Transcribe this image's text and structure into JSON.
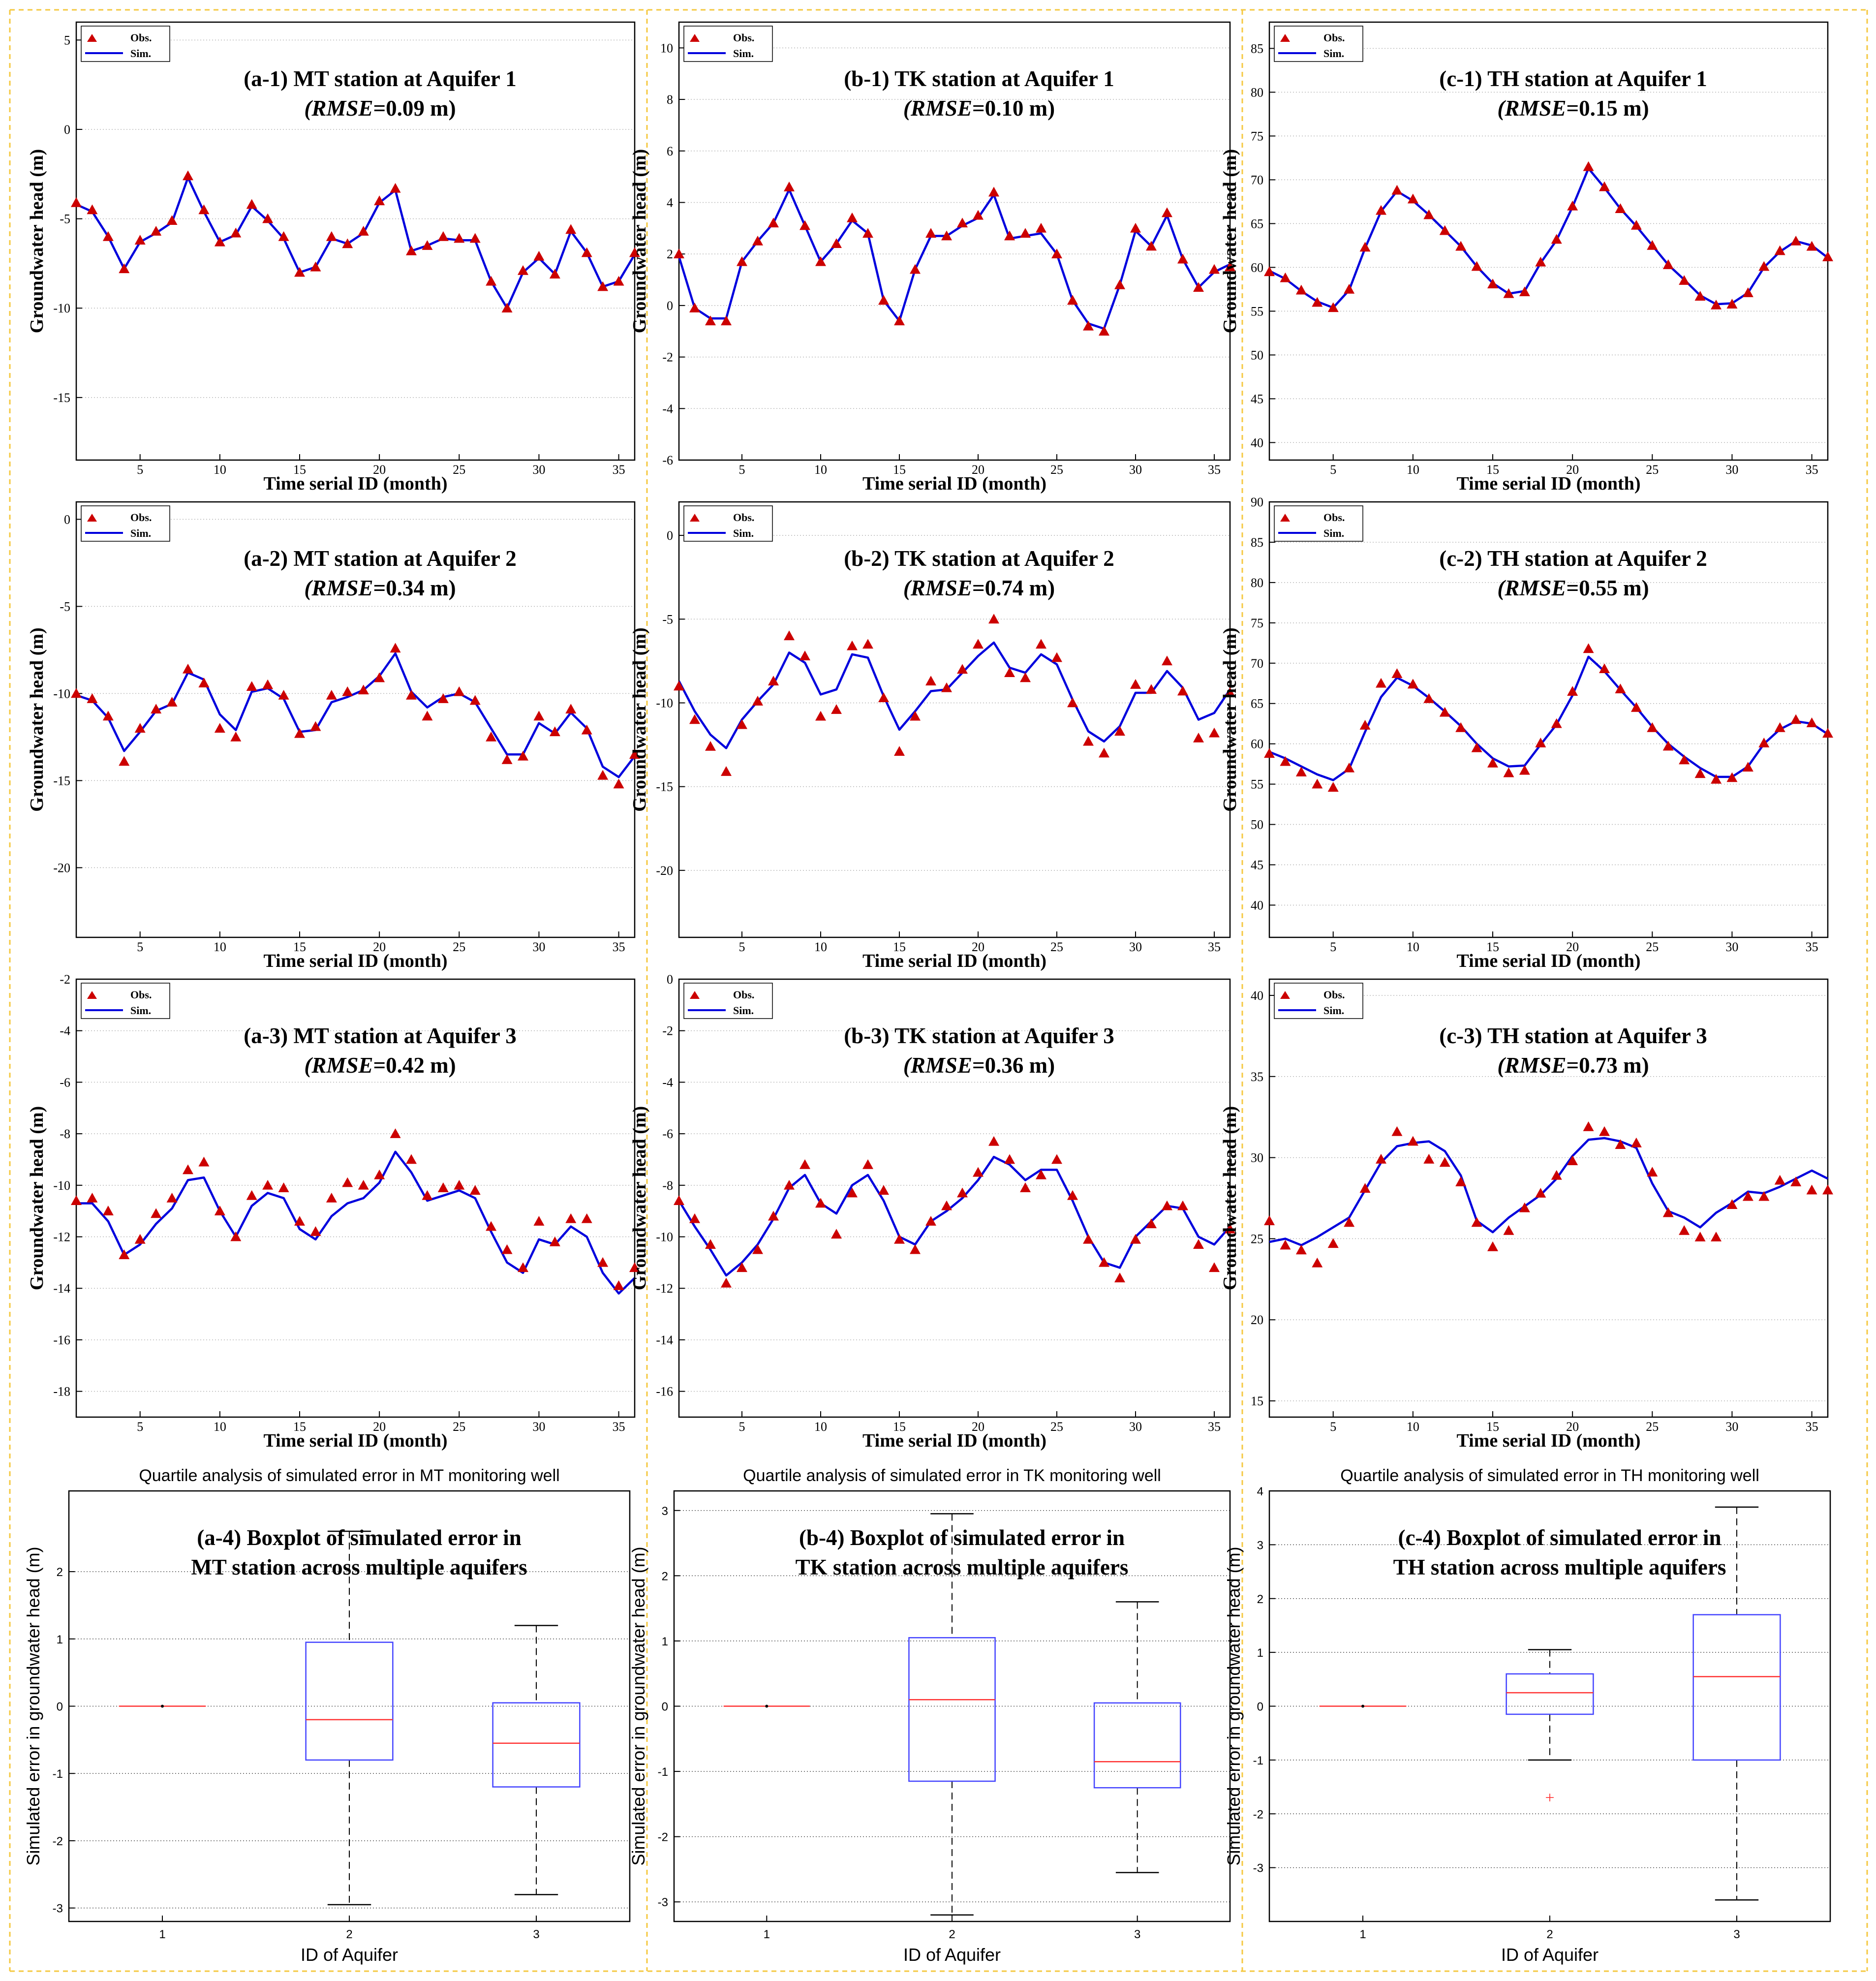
{
  "figure": {
    "divider_color": "#f5c842",
    "obs_color": "#cc0000",
    "sim_color": "#0000dd",
    "box_color": "#4444ff",
    "median_color": "#ff3333",
    "outlier_color": "#ff3333"
  },
  "chart_data": [
    {
      "id": "a1",
      "type": "line",
      "title": "(a-1) MT station at Aquifer 1",
      "rmse_value": "=0.09 m",
      "xlabel": "Time serial ID (month)",
      "ylabel": "Groundwater head (m)",
      "xlim": [
        1,
        36
      ],
      "ylim": [
        -18.5,
        6
      ],
      "xticks": [
        5,
        10,
        15,
        20,
        25,
        30,
        35
      ],
      "yticks": [
        -15,
        -10,
        -5,
        0,
        5
      ],
      "legend": [
        "Obs.",
        "Sim."
      ],
      "obs": [
        -4.1,
        -4.5,
        -6.0,
        -7.8,
        -6.2,
        -5.7,
        -5.1,
        -2.6,
        -4.5,
        -6.3,
        -5.8,
        -4.2,
        -5.0,
        -6.0,
        -8.0,
        -7.7,
        -6.0,
        -6.4,
        -5.7,
        -4.0,
        -3.3,
        -6.8,
        -6.5,
        -6.0,
        -6.1,
        -6.1,
        -8.5,
        -10.0,
        -7.9,
        -7.1,
        -8.1,
        -5.6,
        -6.9,
        -8.8,
        -8.5,
        -6.9
      ],
      "sim": [
        -4.2,
        -4.6,
        -6.0,
        -7.8,
        -6.3,
        -5.8,
        -5.2,
        -2.7,
        -4.6,
        -6.3,
        -5.9,
        -4.3,
        -5.1,
        -6.1,
        -8.0,
        -7.7,
        -6.1,
        -6.4,
        -5.8,
        -4.1,
        -3.4,
        -6.8,
        -6.5,
        -6.1,
        -6.2,
        -6.2,
        -8.5,
        -10.0,
        -8.0,
        -7.2,
        -8.1,
        -5.7,
        -6.9,
        -8.8,
        -8.5,
        -7.0
      ]
    },
    {
      "id": "b1",
      "type": "line",
      "title": "(b-1) TK station at Aquifer 1",
      "rmse_value": "=0.10 m",
      "xlabel": "Time serial ID (month)",
      "ylabel": "Groundwater head (m)",
      "xlim": [
        1,
        36
      ],
      "ylim": [
        -6,
        11
      ],
      "xticks": [
        5,
        10,
        15,
        20,
        25,
        30,
        35
      ],
      "yticks": [
        -6,
        -4,
        -2,
        0,
        2,
        4,
        6,
        8,
        10
      ],
      "legend": [
        "Obs.",
        "Sim."
      ],
      "obs": [
        2.0,
        -0.1,
        -0.6,
        -0.6,
        1.7,
        2.5,
        3.2,
        4.6,
        3.1,
        1.7,
        2.4,
        3.4,
        2.8,
        0.2,
        -0.6,
        1.4,
        2.8,
        2.7,
        3.2,
        3.5,
        4.4,
        2.7,
        2.8,
        3.0,
        2.0,
        0.2,
        -0.8,
        -1.0,
        0.8,
        3.0,
        2.3,
        3.6,
        1.8,
        0.7,
        1.4,
        1.5
      ],
      "sim": [
        1.9,
        -0.1,
        -0.5,
        -0.5,
        1.7,
        2.5,
        3.2,
        4.5,
        3.1,
        1.7,
        2.4,
        3.3,
        2.8,
        0.2,
        -0.6,
        1.4,
        2.7,
        2.7,
        3.1,
        3.4,
        4.3,
        2.6,
        2.7,
        2.8,
        2.0,
        0.2,
        -0.7,
        -0.9,
        0.8,
        2.9,
        2.3,
        3.5,
        1.8,
        0.7,
        1.3,
        1.6
      ]
    },
    {
      "id": "c1",
      "type": "line",
      "title": "(c-1) TH station at Aquifer 1",
      "rmse_value": "=0.15 m",
      "xlabel": "Time serial ID (month)",
      "ylabel": "Groundwater head (m)",
      "xlim": [
        1,
        36
      ],
      "ylim": [
        38,
        88
      ],
      "xticks": [
        5,
        10,
        15,
        20,
        25,
        30,
        35
      ],
      "yticks": [
        40,
        45,
        50,
        55,
        60,
        65,
        70,
        75,
        80,
        85
      ],
      "legend": [
        "Obs.",
        "Sim."
      ],
      "obs": [
        59.5,
        58.8,
        57.4,
        56.0,
        55.4,
        57.5,
        62.3,
        66.5,
        68.8,
        67.8,
        66.0,
        64.2,
        62.4,
        60.1,
        58.1,
        57.0,
        57.2,
        60.6,
        63.2,
        67.0,
        71.5,
        69.2,
        66.7,
        64.8,
        62.5,
        60.3,
        58.5,
        56.7,
        55.7,
        55.8,
        57.1,
        60.1,
        61.9,
        63.0,
        62.4,
        61.2
      ],
      "sim": [
        59.6,
        58.7,
        57.3,
        56.1,
        55.4,
        57.4,
        62.2,
        66.4,
        68.7,
        67.6,
        66.0,
        64.2,
        62.4,
        60.1,
        58.2,
        57.0,
        57.3,
        60.5,
        63.1,
        66.9,
        71.3,
        69.1,
        66.7,
        64.7,
        62.5,
        60.3,
        58.6,
        56.8,
        55.8,
        55.9,
        57.1,
        60.0,
        61.8,
        63.0,
        62.5,
        61.1
      ]
    },
    {
      "id": "a2",
      "type": "line",
      "title": "(a-2) MT station at Aquifer 2",
      "rmse_value": "=0.34 m",
      "xlabel": "Time serial ID (month)",
      "ylabel": "Groundwater head (m)",
      "xlim": [
        1,
        36
      ],
      "ylim": [
        -24,
        1
      ],
      "xticks": [
        5,
        10,
        15,
        20,
        25,
        30,
        35
      ],
      "yticks": [
        -20,
        -15,
        -10,
        -5,
        0
      ],
      "legend": [
        "Obs.",
        "Sim."
      ],
      "obs": [
        -10.0,
        -10.3,
        -11.3,
        -13.9,
        -12.0,
        -10.9,
        -10.5,
        -8.6,
        -9.4,
        -12.0,
        -12.5,
        -9.6,
        -9.5,
        -10.1,
        -12.3,
        -11.9,
        -10.1,
        -9.9,
        -9.8,
        -9.1,
        -7.4,
        -10.1,
        -11.3,
        -10.3,
        -9.9,
        -10.4,
        -12.5,
        -13.8,
        -13.6,
        -11.3,
        -12.2,
        -10.9,
        -12.1,
        -14.7,
        -15.2,
        -13.5
      ],
      "sim": [
        -10.1,
        -10.4,
        -11.4,
        -13.3,
        -12.2,
        -11.0,
        -10.6,
        -8.8,
        -9.2,
        -11.2,
        -12.1,
        -9.9,
        -9.7,
        -10.3,
        -12.2,
        -12.1,
        -10.5,
        -10.2,
        -9.8,
        -9.0,
        -7.7,
        -9.9,
        -10.8,
        -10.2,
        -10.0,
        -10.5,
        -12.0,
        -13.5,
        -13.5,
        -11.7,
        -12.3,
        -11.1,
        -12.0,
        -14.2,
        -14.8,
        -13.6
      ]
    },
    {
      "id": "b2",
      "type": "line",
      "title": "(b-2) TK station at Aquifer 2",
      "rmse_value": "=0.74 m",
      "xlabel": "Time serial ID (month)",
      "ylabel": "Groundwater head (m)",
      "xlim": [
        1,
        36
      ],
      "ylim": [
        -24,
        2
      ],
      "xticks": [
        5,
        10,
        15,
        20,
        25,
        30,
        35
      ],
      "yticks": [
        -20,
        -15,
        -10,
        -5,
        0
      ],
      "legend": [
        "Obs.",
        "Sim."
      ],
      "obs": [
        -9.0,
        -11.0,
        -12.6,
        -14.1,
        -11.3,
        -9.9,
        -8.7,
        -6.0,
        -7.2,
        -10.8,
        -10.4,
        -6.6,
        -6.5,
        -9.7,
        -12.9,
        -10.8,
        -8.7,
        -9.1,
        -8.0,
        -6.5,
        -5.0,
        -8.2,
        -8.5,
        -6.5,
        -7.3,
        -10.0,
        -12.3,
        -13.0,
        -11.7,
        -8.9,
        -9.2,
        -7.5,
        -9.3,
        -12.1,
        -11.8,
        -9.4
      ],
      "sim": [
        -8.7,
        -10.5,
        -11.9,
        -12.7,
        -11.0,
        -9.9,
        -8.9,
        -7.0,
        -7.6,
        -9.5,
        -9.2,
        -7.1,
        -7.3,
        -9.6,
        -11.6,
        -10.5,
        -9.3,
        -9.2,
        -8.2,
        -7.2,
        -6.4,
        -7.9,
        -8.2,
        -7.1,
        -7.7,
        -9.8,
        -11.7,
        -12.3,
        -11.4,
        -9.4,
        -9.4,
        -8.1,
        -9.1,
        -11.0,
        -10.6,
        -9.2
      ]
    },
    {
      "id": "c2",
      "type": "line",
      "title": "(c-2) TH station at Aquifer 2",
      "rmse_value": "=0.55 m",
      "xlabel": "Time serial ID (month)",
      "ylabel": "Groundwater head (m)",
      "xlim": [
        1,
        36
      ],
      "ylim": [
        36,
        90
      ],
      "xticks": [
        5,
        10,
        15,
        20,
        25,
        30,
        35
      ],
      "yticks": [
        40,
        45,
        50,
        55,
        60,
        65,
        70,
        75,
        80,
        85,
        90
      ],
      "legend": [
        "Obs.",
        "Sim."
      ],
      "obs": [
        58.8,
        57.8,
        56.5,
        55.0,
        54.6,
        57.0,
        62.3,
        67.5,
        68.7,
        67.4,
        65.6,
        63.9,
        62.0,
        59.5,
        57.6,
        56.4,
        56.7,
        60.1,
        62.5,
        66.5,
        71.8,
        69.3,
        66.8,
        64.5,
        62.0,
        59.7,
        58.0,
        56.3,
        55.6,
        55.8,
        57.1,
        60.1,
        62.0,
        63.0,
        62.6,
        61.3
      ],
      "sim": [
        59.0,
        58.2,
        57.2,
        56.2,
        55.5,
        56.9,
        61.5,
        65.8,
        68.2,
        67.2,
        65.7,
        64.0,
        62.2,
        60.0,
        58.2,
        57.2,
        57.3,
        59.9,
        62.4,
        66.0,
        70.8,
        69.0,
        66.7,
        64.5,
        62.1,
        60.0,
        58.4,
        57.0,
        55.9,
        55.9,
        57.2,
        60.0,
        61.8,
        62.8,
        62.5,
        61.2
      ]
    },
    {
      "id": "a3",
      "type": "line",
      "title": "(a-3) MT station at Aquifer 3",
      "rmse_value": "=0.42 m",
      "xlabel": "Time serial ID (month)",
      "ylabel": "Groundwater head (m)",
      "xlim": [
        1,
        36
      ],
      "ylim": [
        -19,
        -2
      ],
      "xticks": [
        5,
        10,
        15,
        20,
        25,
        30,
        35
      ],
      "yticks": [
        -18,
        -16,
        -14,
        -12,
        -10,
        -8,
        -6,
        -4,
        -2
      ],
      "legend": [
        "Obs.",
        "Sim."
      ],
      "obs": [
        -10.6,
        -10.5,
        -11.0,
        -12.7,
        -12.1,
        -11.1,
        -10.5,
        -9.4,
        -9.1,
        -11.0,
        -12.0,
        -10.4,
        -10.0,
        -10.1,
        -11.4,
        -11.8,
        -10.5,
        -9.9,
        -10.0,
        -9.6,
        -8.0,
        -9.0,
        -10.4,
        -10.1,
        -10.0,
        -10.2,
        -11.6,
        -12.5,
        -13.2,
        -11.4,
        -12.2,
        -11.3,
        -11.3,
        -13.0,
        -13.9,
        -13.2
      ],
      "sim": [
        -10.7,
        -10.7,
        -11.4,
        -12.7,
        -12.3,
        -11.5,
        -10.9,
        -9.8,
        -9.7,
        -11.0,
        -12.0,
        -10.8,
        -10.3,
        -10.5,
        -11.7,
        -12.1,
        -11.2,
        -10.7,
        -10.5,
        -9.9,
        -8.7,
        -9.5,
        -10.6,
        -10.4,
        -10.2,
        -10.5,
        -11.8,
        -13.0,
        -13.4,
        -12.1,
        -12.3,
        -11.6,
        -12.0,
        -13.4,
        -14.2,
        -13.6
      ]
    },
    {
      "id": "b3",
      "type": "line",
      "title": "(b-3) TK station at Aquifer 3",
      "rmse_value": "=0.36 m",
      "xlabel": "Time serial ID (month)",
      "ylabel": "Groundwater head (m)",
      "xlim": [
        1,
        36
      ],
      "ylim": [
        -17,
        0
      ],
      "xticks": [
        5,
        10,
        15,
        20,
        25,
        30,
        35
      ],
      "yticks": [
        -16,
        -14,
        -12,
        -10,
        -8,
        -6,
        -4,
        -2,
        0
      ],
      "legend": [
        "Obs.",
        "Sim."
      ],
      "obs": [
        -8.6,
        -9.3,
        -10.3,
        -11.8,
        -11.2,
        -10.5,
        -9.2,
        -8.0,
        -7.2,
        -8.7,
        -9.9,
        -8.3,
        -7.2,
        -8.2,
        -10.1,
        -10.5,
        -9.4,
        -8.8,
        -8.3,
        -7.5,
        -6.3,
        -7.0,
        -8.1,
        -7.6,
        -7.0,
        -8.4,
        -10.1,
        -11.0,
        -11.6,
        -10.1,
        -9.5,
        -8.8,
        -8.8,
        -10.3,
        -11.2,
        -9.7
      ],
      "sim": [
        -8.6,
        -9.6,
        -10.5,
        -11.5,
        -11.0,
        -10.3,
        -9.3,
        -8.1,
        -7.6,
        -8.7,
        -9.1,
        -8.0,
        -7.6,
        -8.6,
        -10.0,
        -10.3,
        -9.4,
        -9.0,
        -8.5,
        -7.8,
        -6.9,
        -7.2,
        -7.8,
        -7.4,
        -7.4,
        -8.6,
        -10.0,
        -11.0,
        -11.2,
        -10.0,
        -9.4,
        -8.8,
        -8.9,
        -10.0,
        -10.3,
        -9.6
      ]
    },
    {
      "id": "c3",
      "type": "line",
      "title": "(c-3) TH station at Aquifer 3",
      "rmse_value": "=0.73 m",
      "xlabel": "Time serial ID (month)",
      "ylabel": "Groundwater head (m)",
      "xlim": [
        1,
        36
      ],
      "ylim": [
        14,
        41
      ],
      "xticks": [
        5,
        10,
        15,
        20,
        25,
        30,
        35
      ],
      "yticks": [
        15,
        20,
        25,
        30,
        35,
        40
      ],
      "legend": [
        "Obs.",
        "Sim."
      ],
      "obs": [
        26.1,
        24.6,
        24.3,
        23.5,
        24.7,
        26.0,
        28.1,
        29.9,
        31.6,
        31.0,
        29.9,
        29.7,
        28.5,
        26.0,
        24.5,
        25.5,
        26.9,
        27.8,
        28.9,
        29.8,
        31.9,
        31.6,
        30.8,
        30.9,
        29.1,
        26.6,
        25.5,
        25.1,
        25.1,
        27.1,
        27.6,
        27.6,
        28.6,
        28.5,
        28.0,
        28.0
      ],
      "sim": [
        24.8,
        25.0,
        24.6,
        25.1,
        25.7,
        26.3,
        28.0,
        29.7,
        30.7,
        30.9,
        31.0,
        30.4,
        28.9,
        26.1,
        25.4,
        26.3,
        27.0,
        27.7,
        28.7,
        30.1,
        31.1,
        31.2,
        31.0,
        30.6,
        28.4,
        26.7,
        26.3,
        25.7,
        26.6,
        27.2,
        27.9,
        27.8,
        28.2,
        28.7,
        29.2,
        28.7
      ]
    },
    {
      "id": "a4",
      "type": "box",
      "caption": "Quartile analysis of simulated error in MT monitoring well",
      "title_line1": "(a-4) Boxplot of simulated error in",
      "title_line2": "MT station across multiple aquifers",
      "xlabel": "ID of Aquifer",
      "ylabel": "Simulated error in groundwater head (m)",
      "categories": [
        "1",
        "2",
        "3"
      ],
      "ylim": [
        -3.2,
        3.2
      ],
      "yticks": [
        -3,
        -2,
        -1,
        0,
        1,
        2
      ],
      "boxes": [
        {
          "min": 0,
          "q1": 0,
          "median": 0,
          "q3": 0,
          "max": 0
        },
        {
          "min": -2.95,
          "q1": -0.8,
          "median": -0.2,
          "q3": 0.95,
          "max": 2.6
        },
        {
          "min": -2.8,
          "q1": -1.2,
          "median": -0.55,
          "q3": 0.05,
          "max": 1.2
        }
      ],
      "outliers": [
        [],
        [],
        []
      ]
    },
    {
      "id": "b4",
      "type": "box",
      "caption": "Quartile analysis of simulated error in TK monitoring well",
      "title_line1": "(b-4) Boxplot of simulated error in",
      "title_line2": "TK station across multiple aquifers",
      "xlabel": "ID of Aquifer",
      "ylabel": "Simulated error in groundwater head (m)",
      "categories": [
        "1",
        "2",
        "3"
      ],
      "ylim": [
        -3.3,
        3.3
      ],
      "yticks": [
        -3,
        -2,
        -1,
        0,
        1,
        2,
        3
      ],
      "boxes": [
        {
          "min": 0,
          "q1": 0,
          "median": 0,
          "q3": 0,
          "max": 0
        },
        {
          "min": -3.2,
          "q1": -1.15,
          "median": 0.1,
          "q3": 1.05,
          "max": 2.95
        },
        {
          "min": -2.55,
          "q1": -1.25,
          "median": -0.85,
          "q3": 0.05,
          "max": 1.6
        }
      ],
      "outliers": [
        [],
        [],
        []
      ]
    },
    {
      "id": "c4",
      "type": "box",
      "caption": "Quartile analysis of simulated error in TH monitoring well",
      "title_line1": "(c-4) Boxplot of simulated error in",
      "title_line2": "TH station across multiple aquifers",
      "xlabel": "ID of Aquifer",
      "ylabel": "Simulated error in groundwater head (m)",
      "categories": [
        "1",
        "2",
        "3"
      ],
      "ylim": [
        -4,
        4
      ],
      "yticks": [
        -3,
        -2,
        -1,
        0,
        1,
        2,
        3,
        4
      ],
      "boxes": [
        {
          "min": 0,
          "q1": 0,
          "median": 0,
          "q3": 0,
          "max": 0
        },
        {
          "min": -1.0,
          "q1": -0.15,
          "median": 0.25,
          "q3": 0.6,
          "max": 1.05
        },
        {
          "min": -3.6,
          "q1": -1.0,
          "median": 0.55,
          "q3": 1.7,
          "max": 3.7
        }
      ],
      "outliers": [
        [],
        [
          -1.7
        ],
        []
      ]
    }
  ]
}
